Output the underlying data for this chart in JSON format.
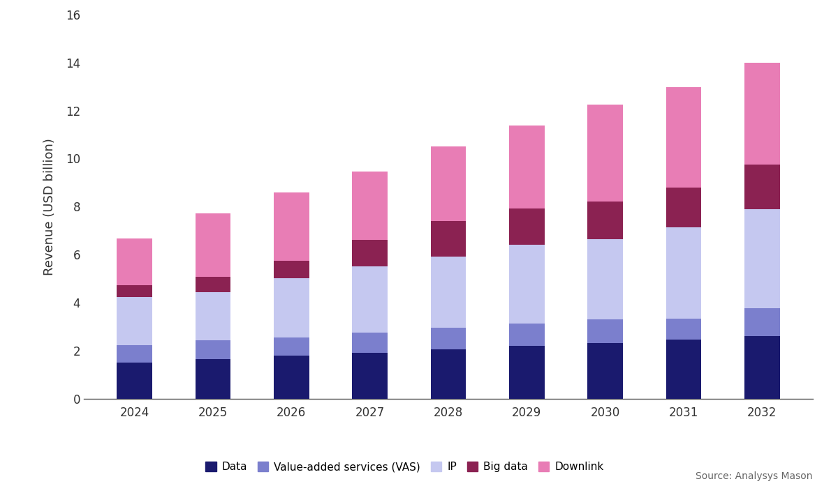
{
  "years": [
    "2024",
    "2025",
    "2026",
    "2027",
    "2028",
    "2029",
    "2030",
    "2031",
    "2032"
  ],
  "segments": {
    "Data": [
      1.5,
      1.65,
      1.8,
      1.9,
      2.05,
      2.2,
      2.3,
      2.45,
      2.6
    ],
    "Value-added services (VAS)": [
      0.72,
      0.78,
      0.75,
      0.85,
      0.9,
      0.92,
      1.0,
      0.88,
      1.15
    ],
    "IP": [
      2.0,
      2.0,
      2.45,
      2.75,
      2.95,
      3.3,
      3.35,
      3.8,
      4.15
    ],
    "Big data": [
      0.5,
      0.65,
      0.75,
      1.1,
      1.5,
      1.5,
      1.55,
      1.65,
      1.85
    ],
    "Downlink": [
      1.95,
      2.65,
      2.85,
      2.85,
      3.1,
      3.45,
      4.05,
      4.2,
      4.25
    ]
  },
  "colors": {
    "Data": "#1a1a6e",
    "Value-added services (VAS)": "#7b7fcd",
    "IP": "#c5c8f0",
    "Big data": "#8b2252",
    "Downlink": "#e87db5"
  },
  "ylabel": "Revenue (USD billion)",
  "ylim": [
    0,
    16
  ],
  "yticks": [
    0,
    2,
    4,
    6,
    8,
    10,
    12,
    14,
    16
  ],
  "source_text": "Source: Analysys Mason",
  "background_color": "#ffffff"
}
